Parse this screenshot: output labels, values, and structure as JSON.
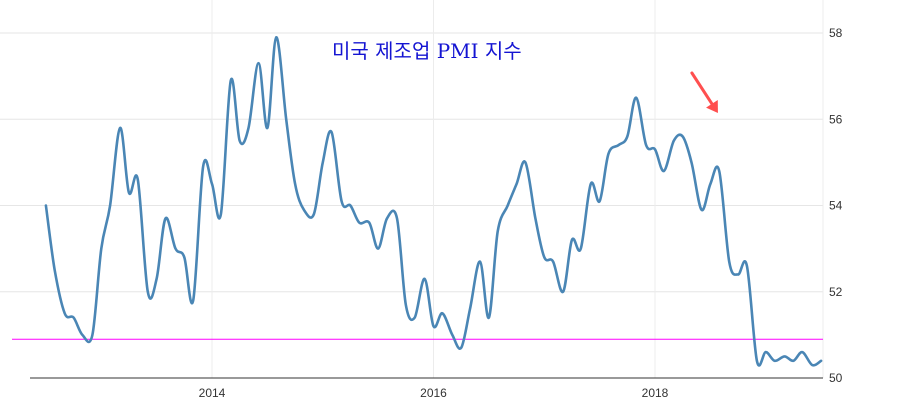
{
  "chart_data": {
    "type": "line",
    "title": "미국 제조업 PMI 지수",
    "xlabel": "",
    "ylabel": "",
    "x_ticks": [
      "2014",
      "2016",
      "2018"
    ],
    "y_ticks": [
      "50",
      "52",
      "54",
      "56",
      "58"
    ],
    "ylim": [
      50,
      58
    ],
    "xlim": [
      2012.4,
      2019.6
    ],
    "grid": true,
    "legend": "none",
    "reference_line": {
      "y": 50.9,
      "color": "#ff00ff"
    },
    "annotation": {
      "type": "arrow",
      "points_to_x": 2018.55,
      "color": "#ff4f4f"
    },
    "series": [
      {
        "color": "#4a86b5",
        "x": [
          2012.5,
          2012.58,
          2012.67,
          2012.75,
          2012.83,
          2012.92,
          2013.0,
          2013.08,
          2013.17,
          2013.25,
          2013.33,
          2013.42,
          2013.5,
          2013.58,
          2013.67,
          2013.75,
          2013.83,
          2013.92,
          2014.0,
          2014.08,
          2014.17,
          2014.25,
          2014.33,
          2014.42,
          2014.5,
          2014.58,
          2014.67,
          2014.75,
          2014.83,
          2014.92,
          2015.0,
          2015.08,
          2015.17,
          2015.25,
          2015.33,
          2015.42,
          2015.5,
          2015.58,
          2015.67,
          2015.75,
          2015.83,
          2015.92,
          2016.0,
          2016.08,
          2016.17,
          2016.25,
          2016.33,
          2016.42,
          2016.5,
          2016.58,
          2016.67,
          2016.75,
          2016.83,
          2016.92,
          2017.0,
          2017.08,
          2017.17,
          2017.25,
          2017.33,
          2017.42,
          2017.5,
          2017.58,
          2017.67,
          2017.75,
          2017.83,
          2017.92,
          2018.0,
          2018.08,
          2018.17,
          2018.25,
          2018.33,
          2018.42,
          2018.5,
          2018.58,
          2018.67,
          2018.75,
          2018.83,
          2018.92,
          2019.0,
          2019.08,
          2019.17,
          2019.25,
          2019.33,
          2019.42,
          2019.5
        ],
        "y": [
          54.0,
          52.5,
          51.5,
          51.4,
          51.0,
          51.0,
          53.0,
          54.0,
          55.8,
          54.3,
          54.6,
          52.0,
          52.3,
          53.7,
          53.0,
          52.8,
          51.8,
          54.9,
          54.5,
          53.8,
          56.9,
          55.5,
          55.8,
          57.3,
          55.8,
          57.9,
          56.0,
          54.5,
          53.9,
          53.8,
          55.0,
          55.7,
          54.1,
          54.0,
          53.6,
          53.6,
          53.0,
          53.7,
          53.7,
          51.7,
          51.4,
          52.3,
          51.2,
          51.5,
          51.0,
          50.7,
          51.6,
          52.7,
          51.4,
          53.4,
          54.0,
          54.5,
          55.0,
          53.7,
          52.8,
          52.7,
          52.0,
          53.2,
          53.0,
          54.5,
          54.1,
          55.2,
          55.4,
          55.6,
          56.5,
          55.4,
          55.3,
          54.8,
          55.5,
          55.6,
          55.0,
          53.9,
          54.5,
          54.8,
          52.7,
          52.4,
          52.6,
          50.4,
          50.6,
          50.4,
          50.5,
          50.4,
          50.6,
          50.3,
          50.4
        ]
      }
    ]
  }
}
